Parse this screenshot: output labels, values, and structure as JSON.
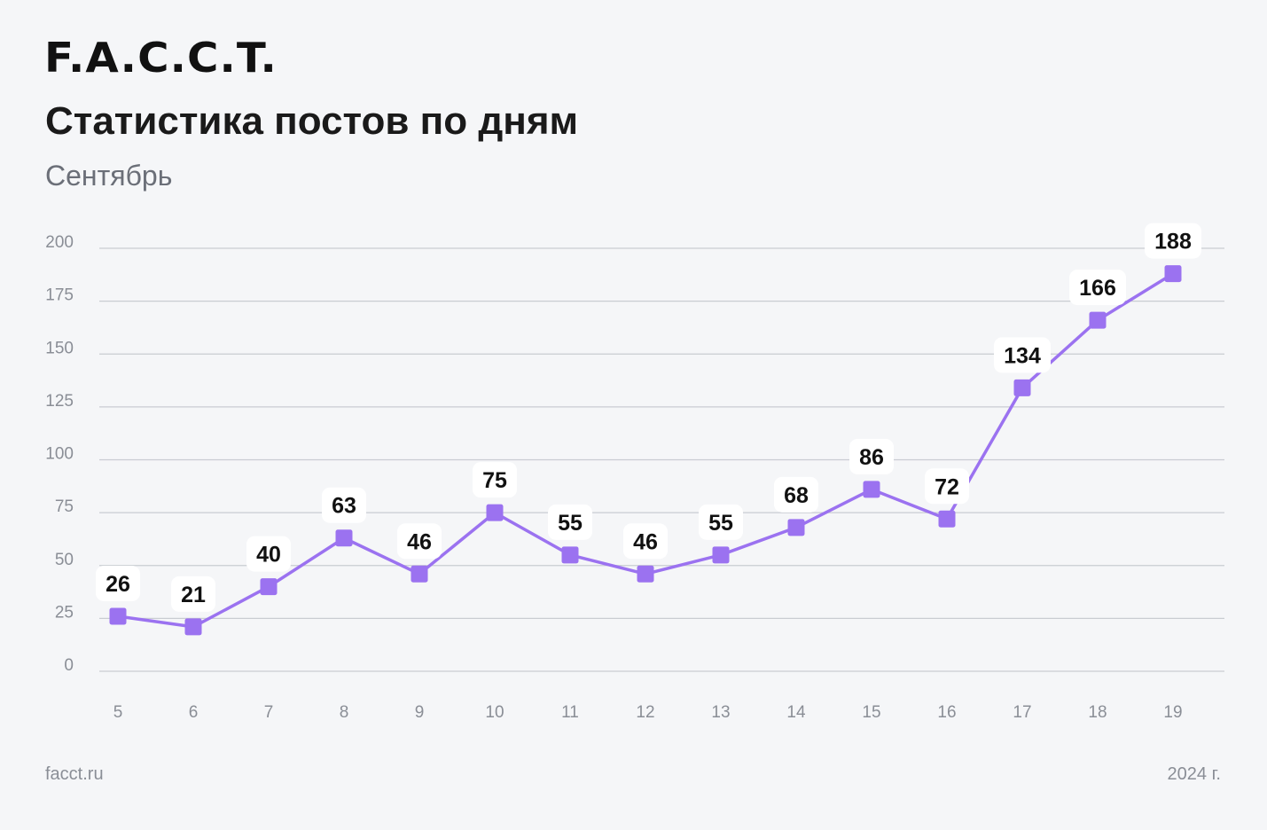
{
  "logo": "F.A.C.C.T.",
  "title": "Статистика постов по дням",
  "subtitle": "Сентябрь",
  "footer": {
    "left": "facct.ru",
    "right": "2024 г."
  },
  "colors": {
    "line": "#9b72f0",
    "marker": "#9b72f0",
    "grid": "#c9ccd2",
    "background": "#f5f6f8"
  },
  "chart_data": {
    "type": "line",
    "title": "Статистика постов по дням",
    "subtitle": "Сентябрь",
    "x": [
      "5",
      "6",
      "7",
      "8",
      "9",
      "10",
      "11",
      "12",
      "13",
      "14",
      "15",
      "16",
      "17",
      "18",
      "19"
    ],
    "series": [
      {
        "values": [
          26,
          21,
          40,
          63,
          46,
          75,
          55,
          46,
          55,
          68,
          86,
          72,
          134,
          166,
          188
        ]
      }
    ],
    "ylim": [
      0,
      200
    ],
    "yticks": [
      "0",
      "25",
      "50",
      "75",
      "100",
      "125",
      "150",
      "175",
      "200"
    ],
    "grid": true,
    "legend": "none"
  }
}
